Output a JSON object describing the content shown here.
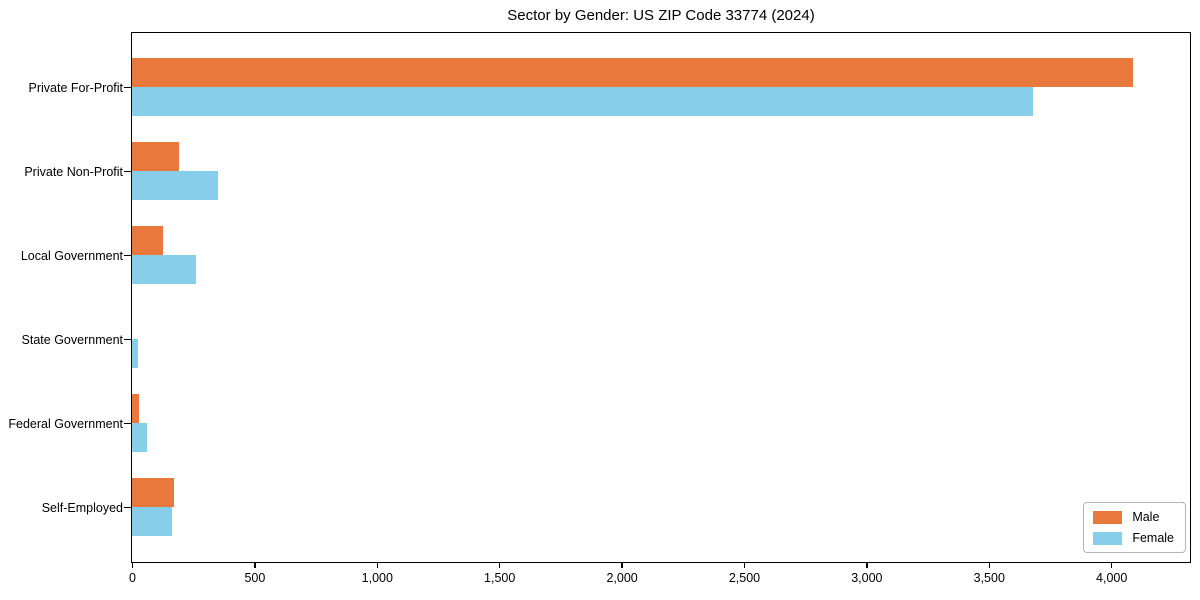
{
  "chart_data": {
    "type": "bar",
    "orientation": "horizontal",
    "title": "Sector by Gender: US ZIP Code 33774 (2024)",
    "categories": [
      "Private For-Profit",
      "Private Non-Profit",
      "Local Government",
      "State Government",
      "Federal Government",
      "Self-Employed"
    ],
    "series": [
      {
        "name": "Male",
        "color": "#e8783c",
        "values": [
          4090,
          190,
          125,
          0,
          30,
          170
        ]
      },
      {
        "name": "Female",
        "color": "#87ceeb",
        "values": [
          3680,
          350,
          260,
          25,
          60,
          165
        ]
      }
    ],
    "xlabel": "",
    "ylabel": "",
    "xlim": [
      0,
      4318
    ],
    "xticks": [
      0,
      500,
      1000,
      1500,
      2000,
      2500,
      3000,
      3500,
      4000
    ],
    "xtick_labels": [
      "0",
      "500",
      "1,000",
      "1,500",
      "2,000",
      "2,500",
      "3,000",
      "3,500",
      "4,000"
    ],
    "grid": false,
    "legend_position": "lower right",
    "spines": "all"
  }
}
